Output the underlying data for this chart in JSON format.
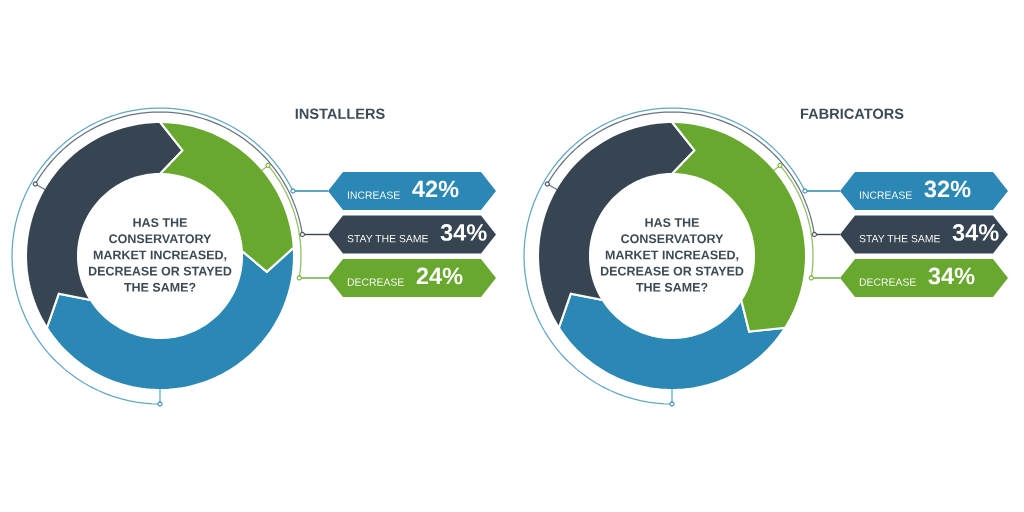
{
  "chart_data": [
    {
      "type": "donut",
      "title": "INSTALLERS",
      "categories": [
        "INCREASE",
        "STAY THE SAME",
        "DECREASE"
      ],
      "values": [
        42,
        34,
        24
      ],
      "colors": [
        "#2b88b5",
        "#374553",
        "#69a82f"
      ],
      "value_labels": [
        "42%",
        "34%",
        "24%"
      ],
      "legend": "right",
      "annotations": [
        "HAS THE\nCONSERVATORY\nMARKET INCREASED,\nDECREASE OR STAYED\nTHE SAME?"
      ]
    },
    {
      "type": "donut",
      "title": "FABRICATORS",
      "categories": [
        "INCREASE",
        "STAY THE SAME",
        "DECREASE"
      ],
      "values": [
        32,
        34,
        34
      ],
      "colors": [
        "#2b88b5",
        "#374553",
        "#69a82f"
      ],
      "value_labels": [
        "32%",
        "34%",
        "34%"
      ],
      "legend": "right",
      "annotations": [
        "HAS THE\nCONSERVATORY\nMARKET INCREASED,\nDECREASE OR STAYED\nTHE SAME?"
      ]
    }
  ]
}
